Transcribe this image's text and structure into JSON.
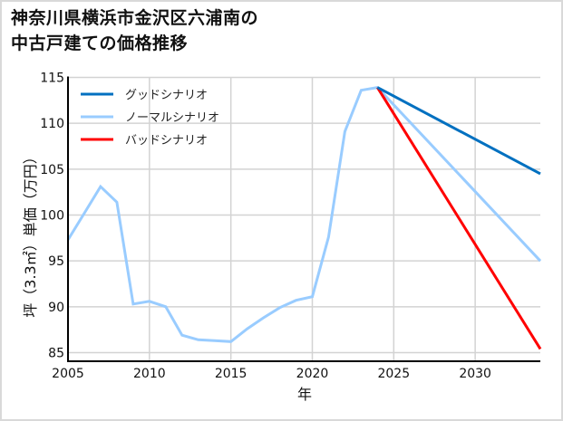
{
  "title": {
    "line1": "神奈川県横浜市金沢区六浦南の",
    "line2": "中古戸建ての価格推移"
  },
  "colors": {
    "good": "#0070c0",
    "normal": "#99ccff",
    "bad": "#ff0000",
    "grid": "#d3d3d3",
    "axis": "#000000"
  },
  "chart_data": {
    "type": "line",
    "title": "神奈川県横浜市金沢区六浦南の中古戸建ての価格推移",
    "xlabel": "年",
    "ylabel": "坪（3.3㎡）単価（万円）",
    "xlim": [
      2005,
      2034
    ],
    "ylim": [
      84,
      115.5
    ],
    "x_ticks": [
      2005,
      2010,
      2015,
      2020,
      2025,
      2030
    ],
    "y_ticks": [
      85,
      90,
      95,
      100,
      105,
      110,
      115
    ],
    "grid": true,
    "legend_position": "upper left",
    "series": [
      {
        "name": "グッドシナリオ",
        "color": "#0070c0",
        "x": [
          2024,
          2034
        ],
        "values": [
          113.9,
          104.5
        ]
      },
      {
        "name": "ノーマルシナリオ",
        "color": "#99ccff",
        "x": [
          2005,
          2006,
          2007,
          2008,
          2009,
          2010,
          2011,
          2012,
          2013,
          2014,
          2015,
          2016,
          2017,
          2018,
          2019,
          2020,
          2021,
          2022,
          2023,
          2024,
          2034
        ],
        "values": [
          97.3,
          100.2,
          103.1,
          101.4,
          90.3,
          90.6,
          90.0,
          86.9,
          86.4,
          86.3,
          86.2,
          87.6,
          88.8,
          89.9,
          90.7,
          91.1,
          97.6,
          109.1,
          113.6,
          113.9,
          95.0
        ]
      },
      {
        "name": "バッドシナリオ",
        "color": "#ff0000",
        "x": [
          2024,
          2034
        ],
        "values": [
          113.9,
          85.4
        ]
      }
    ]
  }
}
